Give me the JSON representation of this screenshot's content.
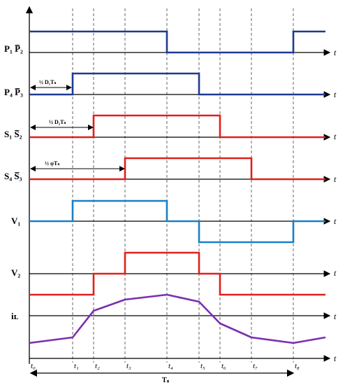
{
  "colors": {
    "switch_a": "#1f3a93",
    "switch_b": "#e0201b",
    "v1": "#1a7fc8",
    "v2": "#e0201b",
    "il": "#7a2fb0",
    "axis": "#000000",
    "guide": "#555555"
  },
  "signals": [
    {
      "id": "p1p2",
      "label": "P₁ P̅₂",
      "axis_label": "t",
      "levels": [
        1,
        1,
        1,
        1,
        0,
        0,
        0,
        0,
        1
      ]
    },
    {
      "id": "p4p3",
      "label": "P₄ P̅₃",
      "axis_label": "t",
      "levels": [
        0,
        1,
        1,
        1,
        1,
        0,
        0,
        0,
        0
      ]
    },
    {
      "id": "s1s2",
      "label": "S₁ S̅₂",
      "axis_label": "t",
      "levels": [
        0,
        0,
        1,
        1,
        1,
        1,
        0,
        0,
        0
      ]
    },
    {
      "id": "s4s3",
      "label": "S₄ S̅₃",
      "axis_label": "t",
      "levels": [
        0,
        0,
        0,
        1,
        1,
        1,
        1,
        0,
        0
      ]
    },
    {
      "id": "v1",
      "label": "V₁",
      "axis_label": "t",
      "levels": [
        0,
        1,
        1,
        1,
        0,
        -1,
        -1,
        -1,
        0
      ]
    },
    {
      "id": "v2",
      "label": "V₂",
      "axis_label": "t",
      "levels": [
        -1,
        -1,
        0,
        1,
        1,
        0,
        -1,
        -1,
        -1
      ]
    },
    {
      "id": "il",
      "label": "iʟ",
      "axis_label": "t"
    }
  ],
  "annotations": {
    "d1": "½ D₁Tₛ",
    "d2": "½ D₂Tₛ",
    "phi": "½ φTₛ"
  },
  "time_ticks": [
    "t₀",
    "t₁",
    "t₂",
    "t₃",
    "t₄",
    "t₅",
    "t₆",
    "t₇",
    "t₈"
  ],
  "main_axis_label": "t",
  "period_label": "Tₛ"
}
